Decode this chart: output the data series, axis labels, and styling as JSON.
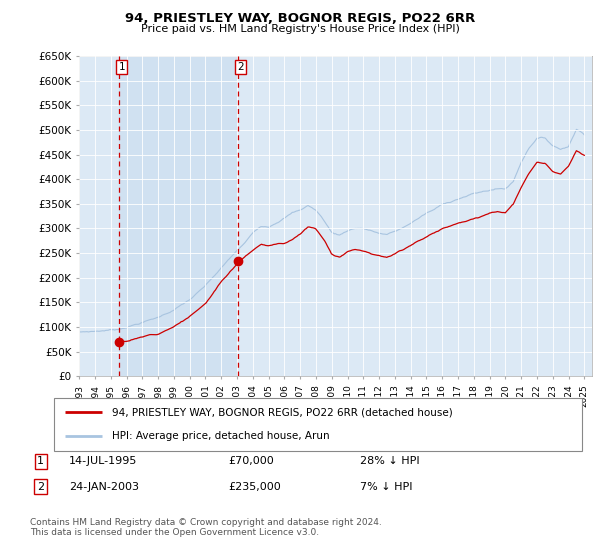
{
  "title": "94, PRIESTLEY WAY, BOGNOR REGIS, PO22 6RR",
  "subtitle": "Price paid vs. HM Land Registry's House Price Index (HPI)",
  "ylabel_ticks": [
    "£0",
    "£50K",
    "£100K",
    "£150K",
    "£200K",
    "£250K",
    "£300K",
    "£350K",
    "£400K",
    "£450K",
    "£500K",
    "£550K",
    "£600K",
    "£650K"
  ],
  "ytick_values": [
    0,
    50000,
    100000,
    150000,
    200000,
    250000,
    300000,
    350000,
    400000,
    450000,
    500000,
    550000,
    600000,
    650000
  ],
  "hpi_color": "#a8c4e0",
  "price_color": "#cc0000",
  "marker_color": "#cc0000",
  "dashed_color": "#cc0000",
  "bg_color": "#dce9f5",
  "shade_color": "#c8ddef",
  "legend_label_price": "94, PRIESTLEY WAY, BOGNOR REGIS, PO22 6RR (detached house)",
  "legend_label_hpi": "HPI: Average price, detached house, Arun",
  "transaction1_date": "14-JUL-1995",
  "transaction1_price": "£70,000",
  "transaction1_hpi": "28% ↓ HPI",
  "transaction2_date": "24-JAN-2003",
  "transaction2_price": "£235,000",
  "transaction2_hpi": "7% ↓ HPI",
  "footer": "Contains HM Land Registry data © Crown copyright and database right 2024.\nThis data is licensed under the Open Government Licence v3.0.",
  "transaction1_year": 1995.54,
  "transaction1_value": 70000,
  "transaction2_year": 2003.07,
  "transaction2_value": 235000,
  "xlim_start": 1993.0,
  "xlim_end": 2025.5,
  "ylim_min": 0,
  "ylim_max": 650000,
  "xticks": [
    1993,
    1994,
    1995,
    1996,
    1997,
    1998,
    1999,
    2000,
    2001,
    2002,
    2003,
    2004,
    2005,
    2006,
    2007,
    2008,
    2009,
    2010,
    2011,
    2012,
    2013,
    2014,
    2015,
    2016,
    2017,
    2018,
    2019,
    2020,
    2021,
    2022,
    2023,
    2024,
    2025
  ]
}
